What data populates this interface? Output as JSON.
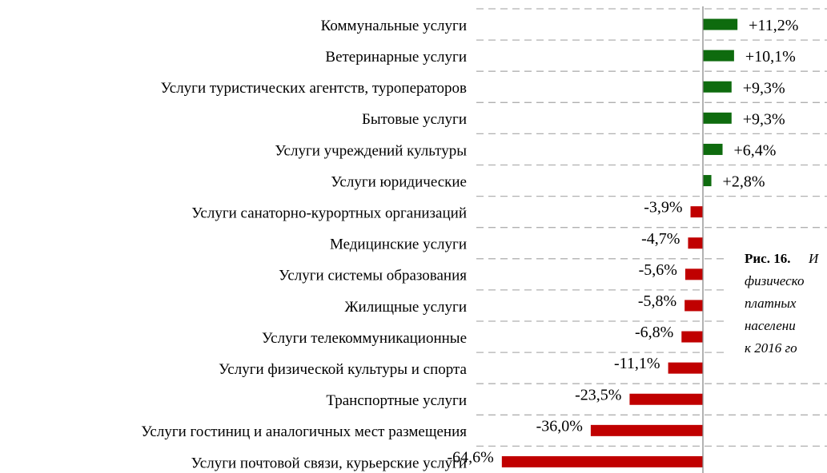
{
  "chart_data": {
    "type": "barh",
    "categories": [
      "Коммунальные услуги",
      "Ветеринарные услуги",
      "Услуги туристических агентств, туроператоров",
      "Бытовые услуги",
      "Услуги учреждений культуры",
      "Услуги юридические",
      "Услуги санаторно-курортных организаций",
      "Медицинские услуги",
      "Услуги системы образования",
      "Жилищные услуги",
      "Услуги телекоммуникационные",
      "Услуги физической культуры и спорта",
      "Транспортные услуги",
      "Услуги гостиниц и аналогичных мест размещения",
      "Услуги почтовой связи, курьерские услуги"
    ],
    "values": [
      11.2,
      10.1,
      9.3,
      9.3,
      6.4,
      2.8,
      -3.9,
      -4.7,
      -5.6,
      -5.8,
      -6.8,
      -11.1,
      -23.5,
      -36.0,
      -64.6
    ],
    "value_labels": [
      "+11,2%",
      "+10,1%",
      "+9,3%",
      "+9,3%",
      "+6,4%",
      "+2,8%",
      "-3,9%",
      "-4,7%",
      "-5,6%",
      "-5,8%",
      "-6,8%",
      "-11,1%",
      "-23,5%",
      "-36,0%",
      "-64,6%"
    ],
    "positive_color": "#0e6b0e",
    "negative_color": "#c00000",
    "xlim": [
      -72.8,
      40
    ],
    "figure_label": "Рис. 16.",
    "caption_lines": [
      "И",
      "физическо",
      "платных",
      "населени",
      "к 2016 го"
    ]
  }
}
